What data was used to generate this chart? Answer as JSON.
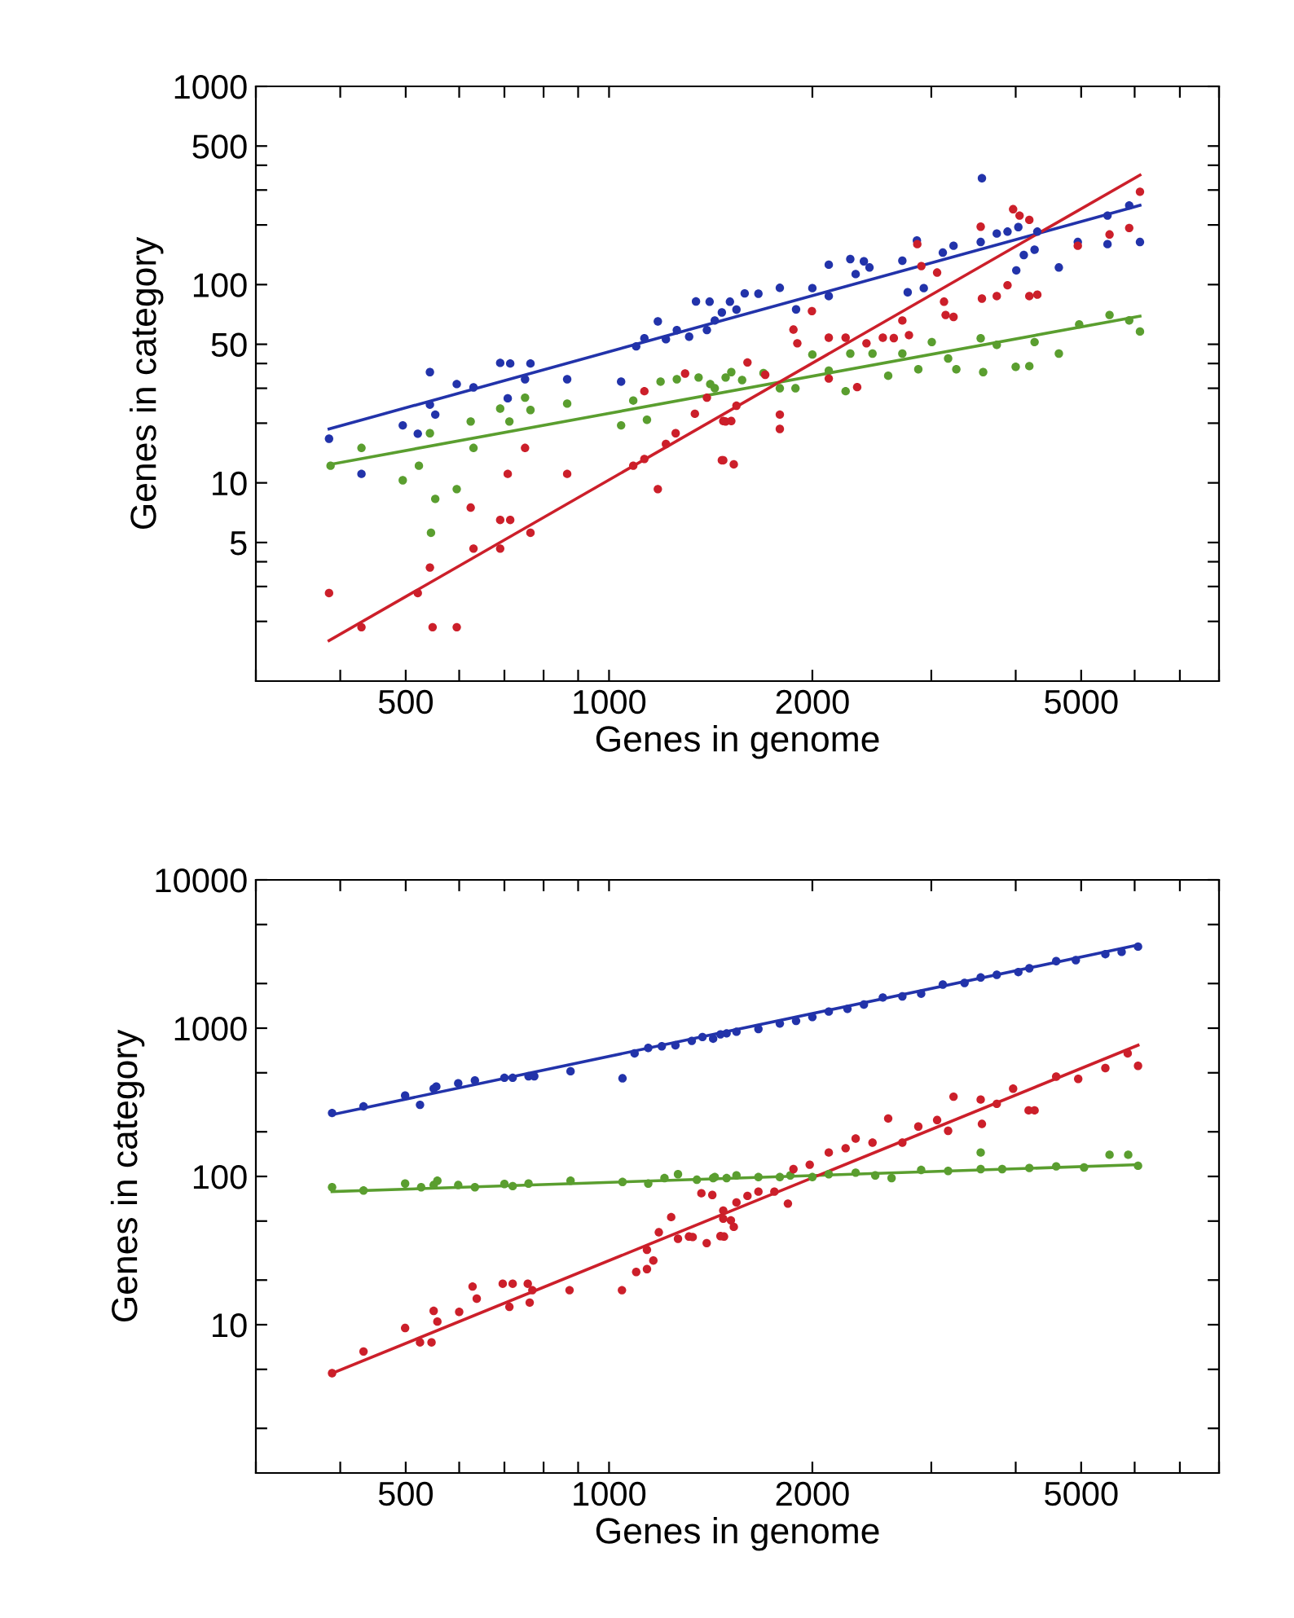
{
  "chart_data": [
    {
      "type": "scatter",
      "xlabel": "Genes in genome",
      "ylabel": "Genes in category",
      "log": "xy",
      "grid": false,
      "marker": "circle",
      "xlim": [
        300,
        8000
      ],
      "ylim": [
        1,
        1000
      ],
      "xticks": [
        {
          "value": 300,
          "label": null
        },
        {
          "value": 400,
          "label": null
        },
        500,
        {
          "value": 600,
          "label": null
        },
        {
          "value": 700,
          "label": null
        },
        {
          "value": 800,
          "label": null
        },
        {
          "value": 900,
          "label": null
        },
        1000,
        2000,
        {
          "value": 3000,
          "label": null
        },
        {
          "value": 4000,
          "label": null
        },
        5000,
        {
          "value": 6000,
          "label": null
        },
        {
          "value": 7000,
          "label": null
        },
        {
          "value": 8000,
          "label": null
        }
      ],
      "yticks": [
        {
          "value": 2,
          "label": null
        },
        {
          "value": 3,
          "label": null
        },
        {
          "value": 4,
          "label": null
        },
        5,
        10,
        {
          "value": 20,
          "label": null
        },
        {
          "value": 30,
          "label": null
        },
        {
          "value": 40,
          "label": null
        },
        50,
        100,
        {
          "value": 200,
          "label": null
        },
        {
          "value": 300,
          "label": null
        },
        {
          "value": 400,
          "label": null
        },
        500,
        1000
      ],
      "series": [
        {
          "color": "#2233aa",
          "x": [
            385,
            430,
            495,
            521,
            543,
            543,
            553,
            595,
            630,
            690,
            714,
            708,
            751,
            765,
            867,
            1042,
            1097,
            1128,
            1181,
            1214,
            1260,
            1314,
            1345,
            1409,
            1396,
            1469,
            1510,
            1434,
            1544,
            1588,
            1664,
            1790,
            1892,
            2000,
            2115,
            2115,
            2276,
            2318,
            2384,
            2430,
            2718,
            2768,
            2856,
            2924,
            3120,
            3236,
            3565,
            3550,
            3750,
            3890,
            4036,
            4008,
            4112,
            4306,
            4266,
            4634,
            4943,
            5470,
            5470,
            5890,
            6110
          ],
          "values": [
            16.7,
            11.1,
            19.5,
            17.7,
            36.2,
            24.8,
            22.1,
            31.5,
            30.3,
            40.3,
            40,
            26.7,
            33.3,
            40,
            33.3,
            32.4,
            48.8,
            53.6,
            65.2,
            53,
            58.9,
            54.6,
            82.2,
            82,
            59,
            72.4,
            82,
            65.9,
            74.8,
            90.3,
            90,
            96.3,
            75,
            96,
            87.5,
            126,
            134.5,
            113,
            131,
            122,
            132,
            91.5,
            167,
            96,
            145,
            157,
            344,
            164,
            181,
            185,
            195,
            118,
            141,
            185,
            150,
            122,
            164,
            223,
            160,
            251,
            164
          ]
        },
        {
          "color": "#5a9e2f",
          "x": [
            387,
            430,
            495,
            523,
            543,
            553,
            545,
            595,
            624,
            630,
            690,
            712,
            751,
            765,
            867,
            1042,
            1086,
            1138,
            1192,
            1260,
            1357,
            1412,
            1488,
            1434,
            1517,
            1574,
            1693,
            1790,
            1888,
            2000,
            2115,
            2240,
            2276,
            2455,
            2590,
            2718,
            2870,
            3005,
            3177,
            3267,
            3550,
            3580,
            3750,
            4000,
            4190,
            4266,
            4634,
            4966,
            5508,
            5890,
            6110
          ],
          "values": [
            12.2,
            15,
            10.3,
            12.2,
            17.8,
            8.3,
            5.6,
            9.3,
            20.4,
            15,
            23.7,
            20.4,
            26.9,
            23.3,
            25.1,
            19.5,
            26,
            20.8,
            32.4,
            33.3,
            34,
            31.5,
            34,
            30,
            36.2,
            33,
            35.8,
            30,
            30,
            44.4,
            36.8,
            29,
            44.9,
            44.9,
            34.7,
            44.9,
            37.4,
            51.3,
            42.4,
            37.4,
            53.6,
            36.2,
            49.7,
            38.5,
            38.8,
            51.3,
            44.9,
            63,
            70.3,
            66,
            58
          ]
        },
        {
          "color": "#cc1f2a",
          "x": [
            385,
            430,
            521,
            543,
            548,
            595,
            624,
            630,
            690,
            714,
            690,
            708,
            751,
            765,
            867,
            1086,
            1128,
            1128,
            1181,
            1214,
            1255,
            1296,
            1340,
            1396,
            1469,
            1488,
            1476,
            1517,
            1544,
            1603,
            1703,
            1476,
            1530,
            1790,
            1790,
            1875,
            1900,
            1997,
            2115,
            2115,
            2240,
            2330,
            2405,
            2543,
            2640,
            2780,
            2718,
            2860,
            2900,
            3060,
            3133,
            3150,
            3236,
            3550,
            3565,
            3750,
            3890,
            3965,
            4053,
            4190,
            4190,
            4306,
            4943,
            5508,
            5890,
            6110
          ],
          "values": [
            2.78,
            1.87,
            2.78,
            3.74,
            1.87,
            1.87,
            7.5,
            4.66,
            6.5,
            6.5,
            4.66,
            11.1,
            15,
            5.6,
            11.1,
            12.2,
            13.2,
            29,
            9.3,
            15.7,
            17.8,
            35.6,
            22.3,
            26.9,
            13,
            20.4,
            20.5,
            20.5,
            24.5,
            40.5,
            35.1,
            13,
            12.4,
            22.1,
            18.7,
            59.3,
            50.6,
            73.5,
            54,
            33.6,
            54,
            30.4,
            50.6,
            54,
            53.7,
            55.6,
            65.9,
            160,
            124,
            115,
            82,
            70.3,
            68.7,
            196,
            85,
            87.5,
            99.3,
            240,
            223,
            212,
            87.5,
            89,
            157,
            179,
            193,
            294
          ]
        },
        {
          "type": "line",
          "marker": "none",
          "color": "#2233aa",
          "x": [
            385,
            6110
          ],
          "values": [
            18.7,
            251
          ]
        },
        {
          "type": "line",
          "marker": "none",
          "color": "#5a9e2f",
          "x": [
            387,
            6110
          ],
          "values": [
            12.4,
            69.3
          ]
        },
        {
          "type": "line",
          "marker": "none",
          "color": "#cc1f2a",
          "x": [
            385,
            6110
          ],
          "values": [
            1.6,
            357
          ]
        }
      ]
    },
    {
      "type": "scatter",
      "xlabel": "Genes in genome",
      "ylabel": "Genes in category",
      "log": "xy",
      "grid": false,
      "marker": "circle",
      "xlim": [
        300,
        8000
      ],
      "ylim": [
        1,
        10000
      ],
      "xticks": [
        {
          "value": 300,
          "label": null
        },
        {
          "value": 400,
          "label": null
        },
        500,
        {
          "value": 600,
          "label": null
        },
        {
          "value": 700,
          "label": null
        },
        {
          "value": 800,
          "label": null
        },
        {
          "value": 900,
          "label": null
        },
        1000,
        2000,
        {
          "value": 3000,
          "label": null
        },
        {
          "value": 4000,
          "label": null
        },
        5000,
        {
          "value": 6000,
          "label": null
        },
        {
          "value": 7000,
          "label": null
        },
        {
          "value": 8000,
          "label": null
        }
      ],
      "yticks": [
        {
          "value": 2,
          "label": null
        },
        {
          "value": 5,
          "label": null
        },
        10,
        {
          "value": 20,
          "label": null
        },
        {
          "value": 50,
          "label": null
        },
        100,
        {
          "value": 200,
          "label": null
        },
        {
          "value": 500,
          "label": null
        },
        1000,
        {
          "value": 2000,
          "label": null
        },
        {
          "value": 5000,
          "label": null
        },
        10000
      ],
      "series": [
        {
          "color": "#2233aa",
          "x": [
            389,
            433,
            499,
            525,
            550,
            555,
            598,
            633,
            700,
            720,
            760,
            775,
            877,
            1047,
            1091,
            1143,
            1197,
            1254,
            1326,
            1375,
            1426,
            1493,
            1462,
            1544,
            1664,
            1790,
            1892,
            2000,
            2115,
            2254,
            2384,
            2543,
            2718,
            2898,
            3120,
            3360,
            3550,
            3750,
            4036,
            4190,
            4592,
            4910,
            5430,
            5740,
            6070
          ],
          "values": [
            268,
            297,
            351,
            304,
            391,
            404,
            425,
            444,
            463,
            463,
            474,
            474,
            512,
            459,
            676,
            736,
            755,
            767,
            821,
            871,
            849,
            923,
            908,
            946,
            988,
            1074,
            1119,
            1189,
            1294,
            1349,
            1442,
            1610,
            1637,
            1708,
            1968,
            2018,
            2198,
            2291,
            2388,
            2535,
            2830,
            2876,
            3155,
            3267,
            3548
          ]
        },
        {
          "color": "#5a9e2f",
          "x": [
            389,
            433,
            499,
            527,
            550,
            557,
            598,
            633,
            700,
            720,
            760,
            877,
            1047,
            1143,
            1208,
            1265,
            1349,
            1426,
            1493,
            1434,
            1544,
            1664,
            1790,
            1855,
            2000,
            2115,
            2318,
            2478,
            2620,
            2898,
            3177,
            3550,
            3550,
            3820,
            4190,
            4592,
            5050,
            5508,
            5870,
            6070
          ],
          "values": [
            84.6,
            80.4,
            89.5,
            84.6,
            87.5,
            93.6,
            87.5,
            84.6,
            89,
            86,
            89.5,
            93.6,
            91.8,
            89.5,
            97.5,
            103.5,
            95,
            97.5,
            97.5,
            99,
            101.6,
            99,
            99,
            101.6,
            99,
            103.5,
            106,
            101.6,
            97.5,
            110.6,
            108.9,
            145,
            112,
            112,
            114,
            117,
            115,
            140,
            140,
            118
          ]
        },
        {
          "color": "#cc1f2a",
          "x": [
            389,
            433,
            499,
            525,
            546,
            557,
            550,
            600,
            628,
            637,
            696,
            720,
            712,
            758,
            763,
            770,
            874,
            1045,
            1097,
            1138,
            1138,
            1163,
            1185,
            1236,
            1265,
            1313,
            1330,
            1395,
            1370,
            1422,
            1480,
            1476,
            1515,
            1462,
            1476,
            1530,
            1544,
            1603,
            1664,
            1757,
            1840,
            1875,
            1982,
            2115,
            2240,
            2318,
            2455,
            2590,
            2718,
            2870,
            3060,
            3177,
            3236,
            3550,
            3565,
            3750,
            3965,
            4180,
            4266,
            4592,
            4950,
            5430,
            5860,
            6070
          ],
          "values": [
            4.71,
            6.6,
            9.5,
            7.6,
            7.6,
            10.5,
            12.4,
            12.2,
            18.1,
            15,
            18.9,
            18.9,
            13.2,
            18.9,
            14.1,
            17.1,
            17.1,
            17.1,
            22.7,
            23.7,
            32,
            27.1,
            42,
            53.2,
            38,
            39.3,
            39,
            35.5,
            77,
            75,
            39.3,
            58.9,
            50.6,
            39.6,
            51.9,
            45.7,
            66.8,
            73.9,
            79,
            79,
            65.6,
            112,
            120,
            145,
            155,
            180,
            169,
            246,
            169,
            217,
            240,
            203,
            345,
            330,
            226,
            309,
            391,
            279,
            279,
            471,
            455,
            538,
            676,
            557
          ]
        },
        {
          "type": "line",
          "marker": "none",
          "color": "#2233aa",
          "x": [
            389,
            6070
          ],
          "values": [
            261,
            3640
          ]
        },
        {
          "type": "line",
          "marker": "none",
          "color": "#5a9e2f",
          "x": [
            389,
            6070
          ],
          "values": [
            79,
            120
          ]
        },
        {
          "type": "line",
          "marker": "none",
          "color": "#cc1f2a",
          "x": [
            389,
            6070
          ],
          "values": [
            4.7,
            767
          ]
        }
      ]
    }
  ]
}
